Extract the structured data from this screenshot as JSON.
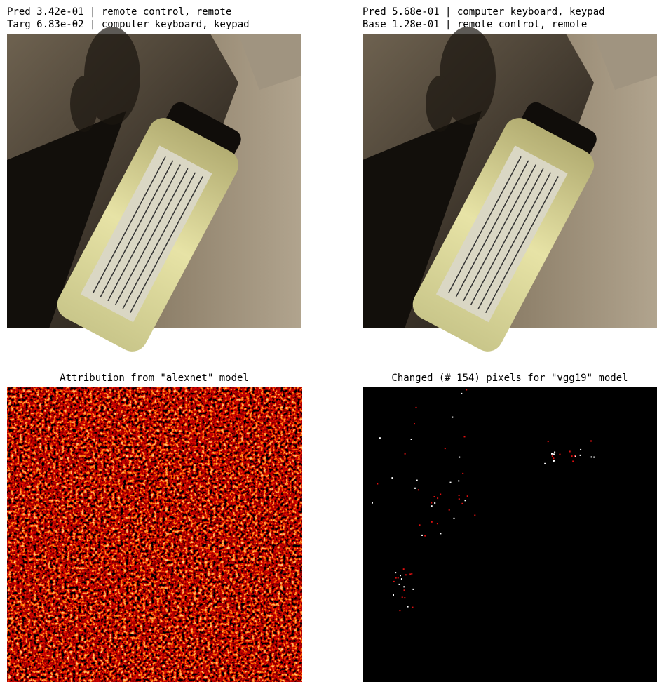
{
  "panels": [
    {
      "title_lines": [
        "Pred 3.42e-01 | remote control, remote",
        "Targ 6.83e-02 | computer keyboard, keypad"
      ]
    },
    {
      "title_lines": [
        "Pred 5.68e-01 | computer keyboard, keypad",
        "Base 1.28e-01 | remote control, remote"
      ]
    },
    {
      "title": "Attribution from \"alexnet\" model"
    },
    {
      "title": "Changed (# 154) pixels for \"vgg19\" model"
    }
  ]
}
